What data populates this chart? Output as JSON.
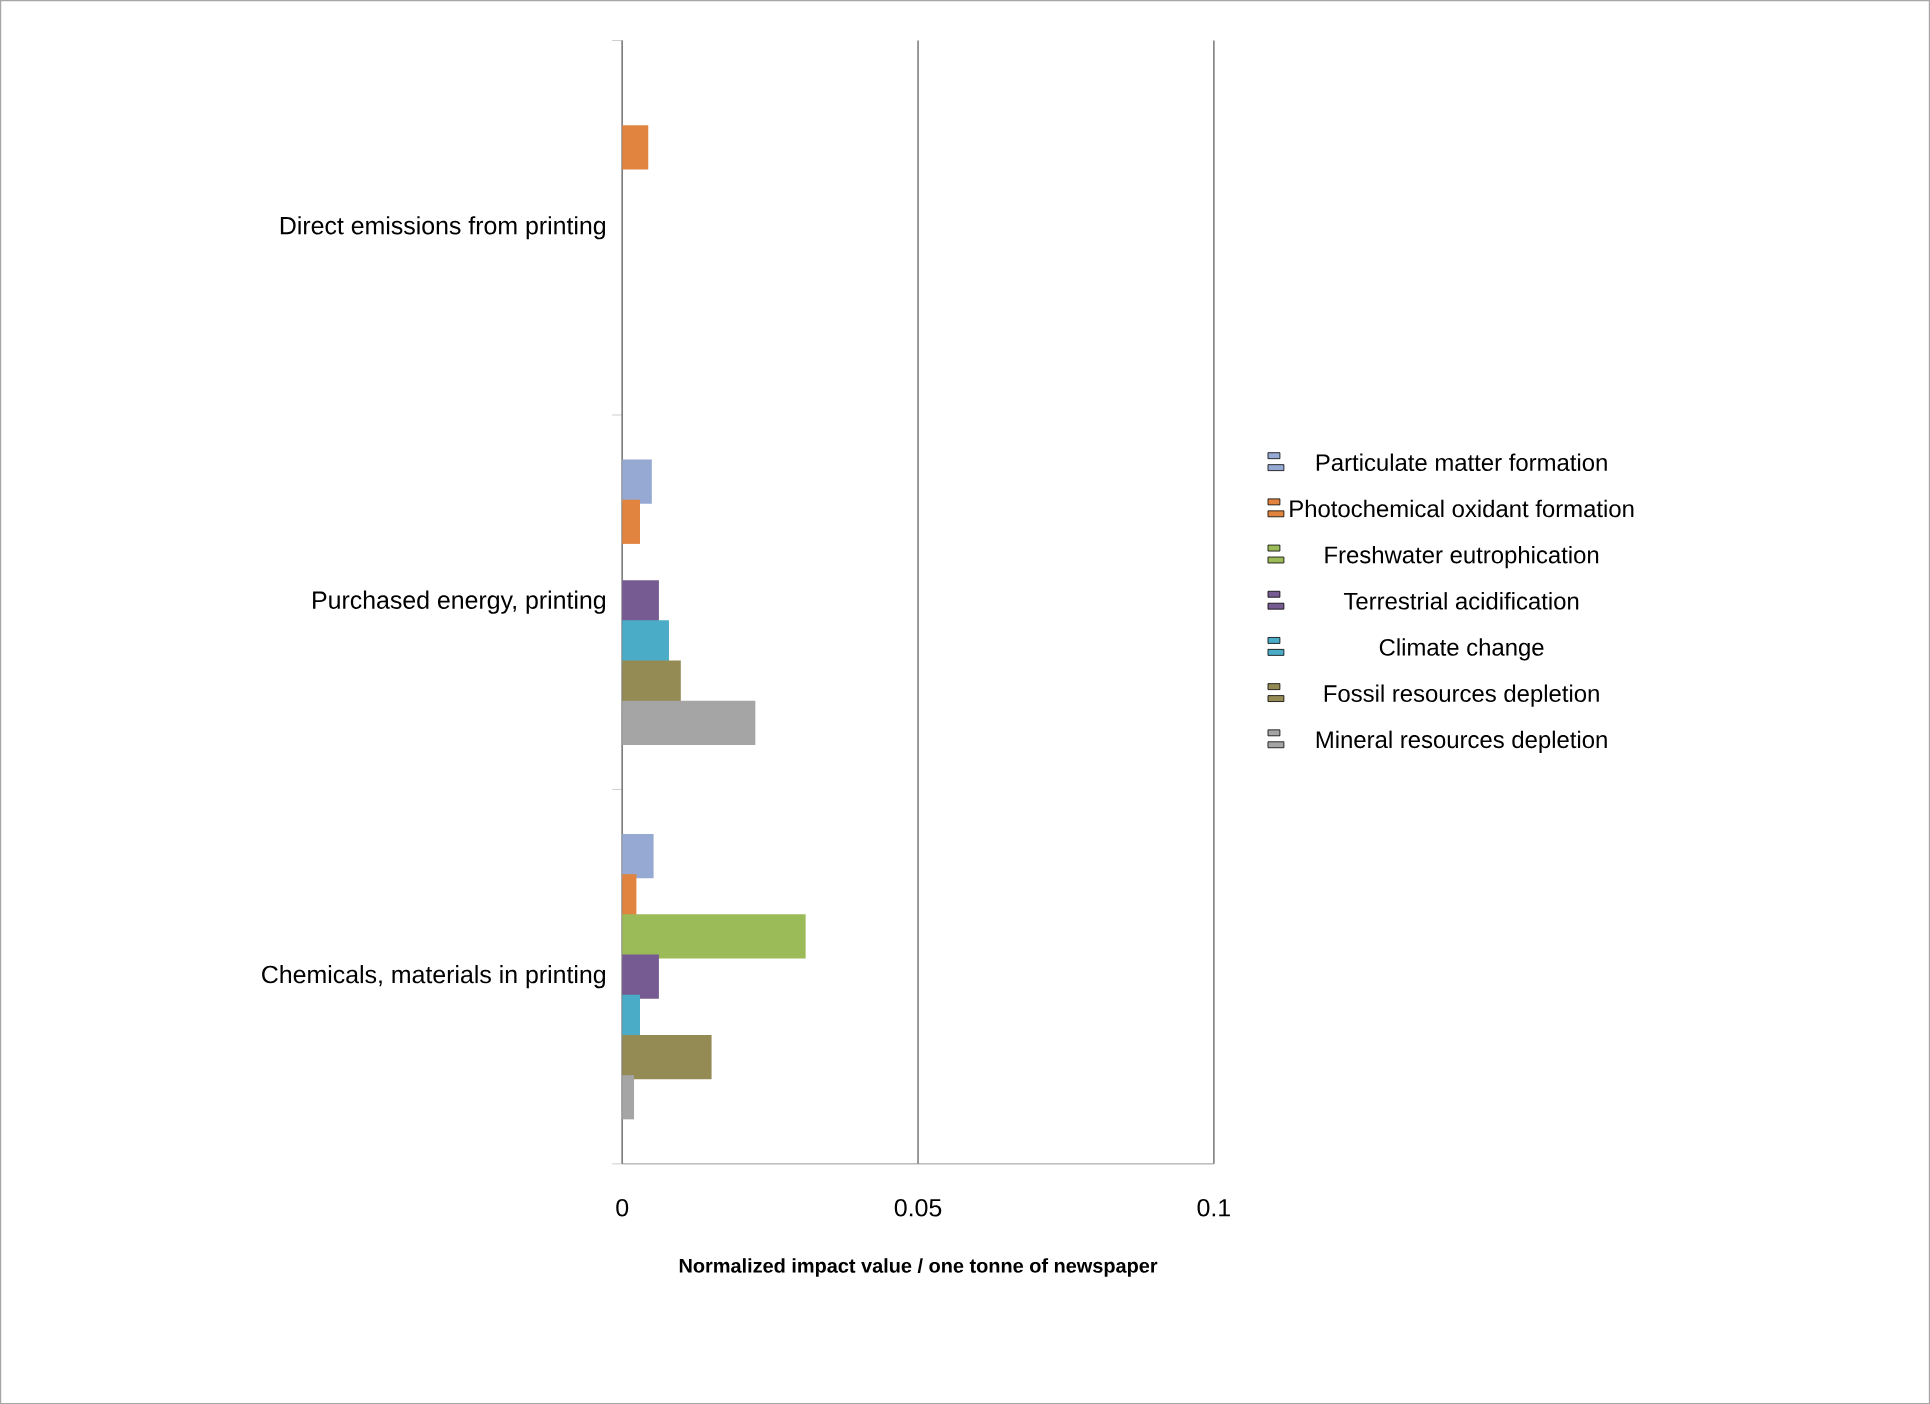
{
  "chart_data": {
    "type": "bar",
    "orientation": "horizontal",
    "xlabel": "Normalized impact value / one tonne of newspaper",
    "categories": [
      "Direct emissions from printing",
      "Purchased energy, printing",
      "Chemicals, materials in printing"
    ],
    "series": [
      {
        "name": "Particulate matter formation",
        "color": "#95a9d3",
        "values": [
          null,
          0.005,
          0.0053
        ]
      },
      {
        "name": "Photochemical oxidant formation",
        "color": "#e0843f",
        "values": [
          0.0044,
          0.003,
          0.0024
        ]
      },
      {
        "name": "Freshwater eutrophication",
        "color": "#9bbb59",
        "values": [
          null,
          null,
          0.031
        ]
      },
      {
        "name": "Terrestrial acidification",
        "color": "#765a92",
        "values": [
          null,
          0.0062,
          0.0062
        ]
      },
      {
        "name": "Climate change",
        "color": "#4aacc6",
        "values": [
          null,
          0.0079,
          0.003
        ]
      },
      {
        "name": "Fossil resources depletion",
        "color": "#948a54",
        "values": [
          null,
          0.0099,
          0.0151
        ]
      },
      {
        "name": "Mineral resources depletion",
        "color": "#a5a5a5",
        "values": [
          null,
          0.0225,
          0.002
        ]
      }
    ],
    "xlim": [
      0,
      0.1
    ],
    "xticks": [
      0,
      0.05,
      0.1
    ],
    "grid": "x",
    "legend": "right"
  }
}
